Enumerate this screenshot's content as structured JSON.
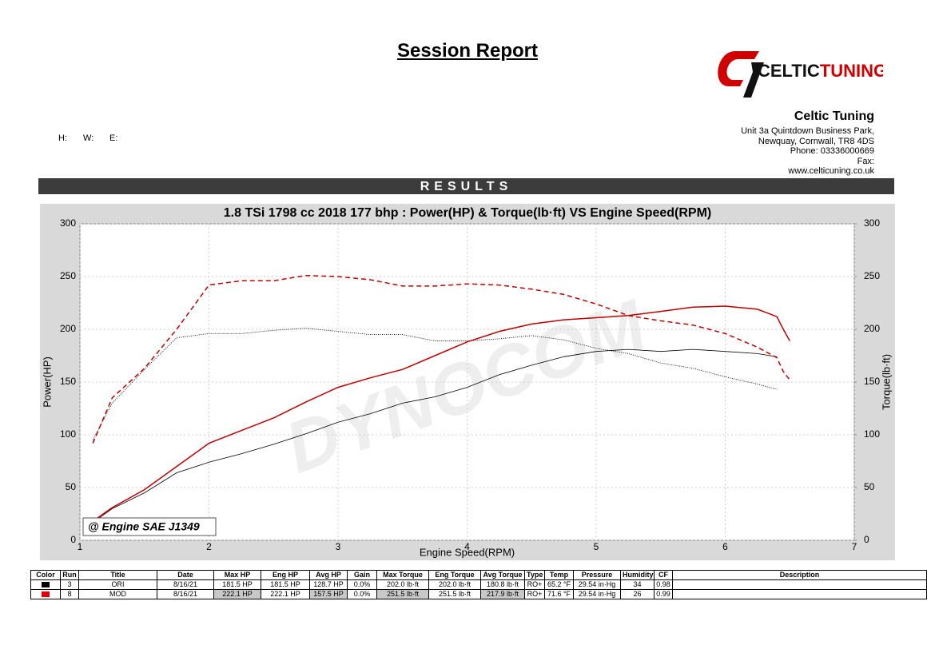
{
  "header": {
    "title": "Session Report",
    "fields": [
      "H:",
      "W:",
      "E:"
    ],
    "logo": [
      "CELTIC",
      "TUNING"
    ],
    "company": [
      "Celtic Tuning",
      "Unit 3a Quintdown Business Park,",
      "Newquay, Cornwall, TR8 4DS",
      "Phone: 03336000669",
      "Fax:",
      "www.celticuning.co.uk"
    ],
    "section": "RESULTS"
  },
  "chart_data": {
    "type": "line",
    "title": "1.8 TSi 1798 cc 2018 177 bhp : Power(HP) & Torque(lb·ft) VS Engine Speed(RPM)",
    "x_label": "Engine Speed(RPM)",
    "y_label": "Power(HP)",
    "y2_label": "Torque(lb·ft)",
    "annotation": "@ Engine SAE J1349",
    "watermark": "DYNOCOM",
    "x": [
      1.1,
      1.25,
      1.5,
      1.75,
      2,
      2.25,
      2.5,
      2.75,
      3,
      3.25,
      3.5,
      3.75,
      4,
      4.25,
      4.5,
      4.75,
      5,
      5.25,
      5.5,
      5.75,
      6,
      6.25,
      6.4,
      6.45,
      6.5
    ],
    "xlim": [
      1,
      7
    ],
    "xticks": [
      1,
      2,
      3,
      4,
      5,
      6,
      7
    ],
    "ylim": [
      0,
      300
    ],
    "yticks": [
      0,
      50,
      100,
      150,
      200,
      250,
      300
    ],
    "y2lim": [
      0,
      300
    ],
    "y2ticks": [
      0,
      50,
      100,
      150,
      200,
      250,
      300
    ],
    "grid": true,
    "series": [
      {
        "color": "#000000",
        "style": "solid",
        "values": [
          17,
          30,
          45,
          64,
          74,
          82,
          91,
          101,
          112,
          120,
          130,
          136,
          145,
          157,
          166,
          174,
          179,
          181,
          179,
          181,
          179,
          177,
          174,
          null,
          null
        ]
      },
      {
        "color": "#000000",
        "style": "dotted",
        "axis": "y2",
        "values": [
          95,
          130,
          162,
          192,
          196,
          196,
          199,
          201,
          198,
          195,
          195,
          189,
          189,
          191,
          194,
          190,
          182,
          177,
          168,
          163,
          155,
          148,
          143,
          null,
          null
        ]
      },
      {
        "color": "#c00000",
        "style": "solid",
        "values": [
          18,
          31,
          48,
          70,
          92,
          104,
          116,
          131,
          145,
          154,
          162,
          175,
          188,
          198,
          205,
          209,
          211,
          213,
          217,
          221,
          222,
          219,
          212,
          200,
          189
        ]
      },
      {
        "color": "#c00000",
        "style": "dashed",
        "axis": "y2",
        "values": [
          92,
          135,
          163,
          200,
          242,
          246,
          246,
          251,
          250,
          247,
          241,
          241,
          243,
          242,
          238,
          233,
          224,
          213,
          208,
          204,
          196,
          183,
          173,
          160,
          152
        ]
      }
    ]
  },
  "table": {
    "header": [
      "Color",
      "Run",
      "Title",
      "Date",
      "Max HP",
      "Eng HP",
      "Avg HP",
      "Gain",
      "Max Torque",
      "Eng Torque",
      "Avg Torque",
      "Type",
      "Temp",
      "Pressure",
      "Humidity",
      "CF",
      "Description"
    ],
    "rows": [
      {
        "swatch": "#000000",
        "cells": [
          "3",
          "ORI",
          "8/16/21",
          "181.5 HP",
          "181.5 HP",
          "128.7 HP",
          "0.0%",
          "202.0 lb·ft",
          "202.0 lb·ft",
          "180.8 lb·ft",
          "RO+",
          "65.2 °F",
          "29.54 in·Hg",
          "34",
          "0.98"
        ]
      },
      {
        "swatch": "#e00000",
        "cells": [
          "8",
          "MOD",
          "8/16/21",
          "222.1 HP",
          "222.1 HP",
          "157.5 HP",
          "0.0%",
          "251.5 lb·ft",
          "251.5 lb·ft",
          "217.9 lb·ft",
          "RO+",
          "71.6 °F",
          "29.54 in·Hg",
          "26",
          "0.99"
        ]
      }
    ]
  }
}
